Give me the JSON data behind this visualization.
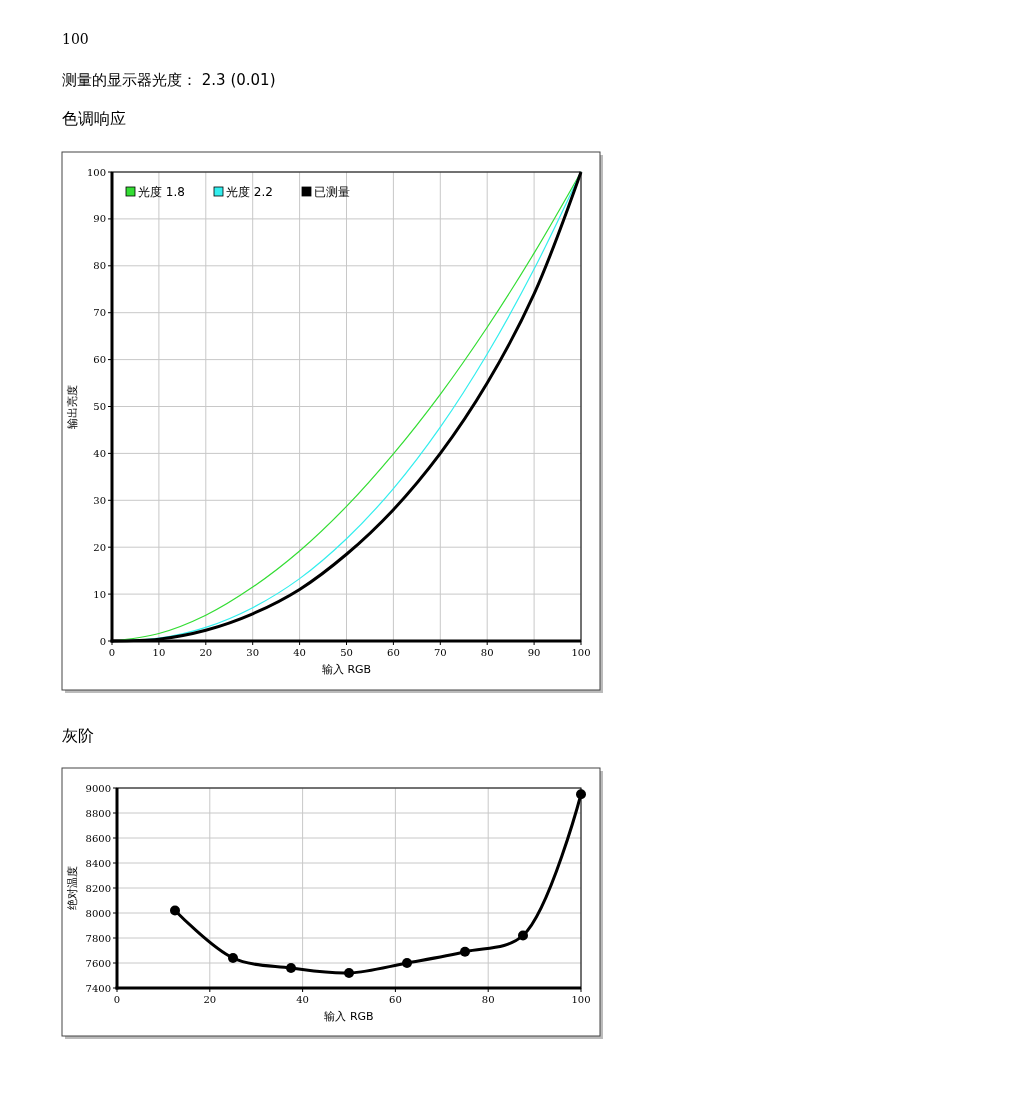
{
  "chart_data": [
    {
      "type": "line",
      "title": "色调响应",
      "annotations": [
        "100",
        "测量的显示器光度： 2.3 (0.01)"
      ],
      "xlabel": "输入 RGB",
      "ylabel": "输出亮度",
      "xlim": [
        0,
        100
      ],
      "ylim": [
        0,
        100
      ],
      "xticks": [
        0,
        10,
        20,
        30,
        40,
        50,
        60,
        70,
        80,
        90,
        100
      ],
      "yticks": [
        0,
        10,
        20,
        30,
        40,
        50,
        60,
        70,
        80,
        90,
        100
      ],
      "grid": true,
      "legend": "top left",
      "marker": "none",
      "x": [
        0,
        10,
        20,
        30,
        40,
        50,
        60,
        70,
        80,
        90,
        100
      ],
      "series": [
        {
          "name": "光度 1.8",
          "color": "#33dd33",
          "values": [
            0,
            1.6,
            5.5,
            11.5,
            19.2,
            28.7,
            39.9,
            52.6,
            66.9,
            82.7,
            100
          ]
        },
        {
          "name": "光度 2.2",
          "color": "#33eeee",
          "values": [
            0,
            0.6,
            2.9,
            7.1,
            13.3,
            21.8,
            32.5,
            45.6,
            61.2,
            79.3,
            100
          ]
        },
        {
          "name": "已测量",
          "color": "#000000",
          "values": [
            0,
            0.4,
            2.3,
            5.8,
            11,
            18.5,
            28,
            40,
            55,
            74,
            100
          ]
        }
      ]
    },
    {
      "type": "line",
      "title": "灰阶",
      "xlabel": "输入 RGB",
      "ylabel": "绝对温度",
      "xlim": [
        0,
        100
      ],
      "ylim": [
        7400,
        9000
      ],
      "xticks": [
        0,
        20,
        40,
        60,
        80,
        100
      ],
      "yticks": [
        7400,
        7600,
        7800,
        8000,
        8200,
        8400,
        8600,
        8800,
        9000
      ],
      "grid": true,
      "legend": false,
      "marker": "circle",
      "x": [
        12.5,
        25,
        37.5,
        50,
        62.5,
        75,
        87.5,
        100
      ],
      "series": [
        {
          "color": "#000000",
          "values": [
            8020,
            7640,
            7560,
            7520,
            7600,
            7690,
            7820,
            8950
          ]
        }
      ]
    }
  ]
}
